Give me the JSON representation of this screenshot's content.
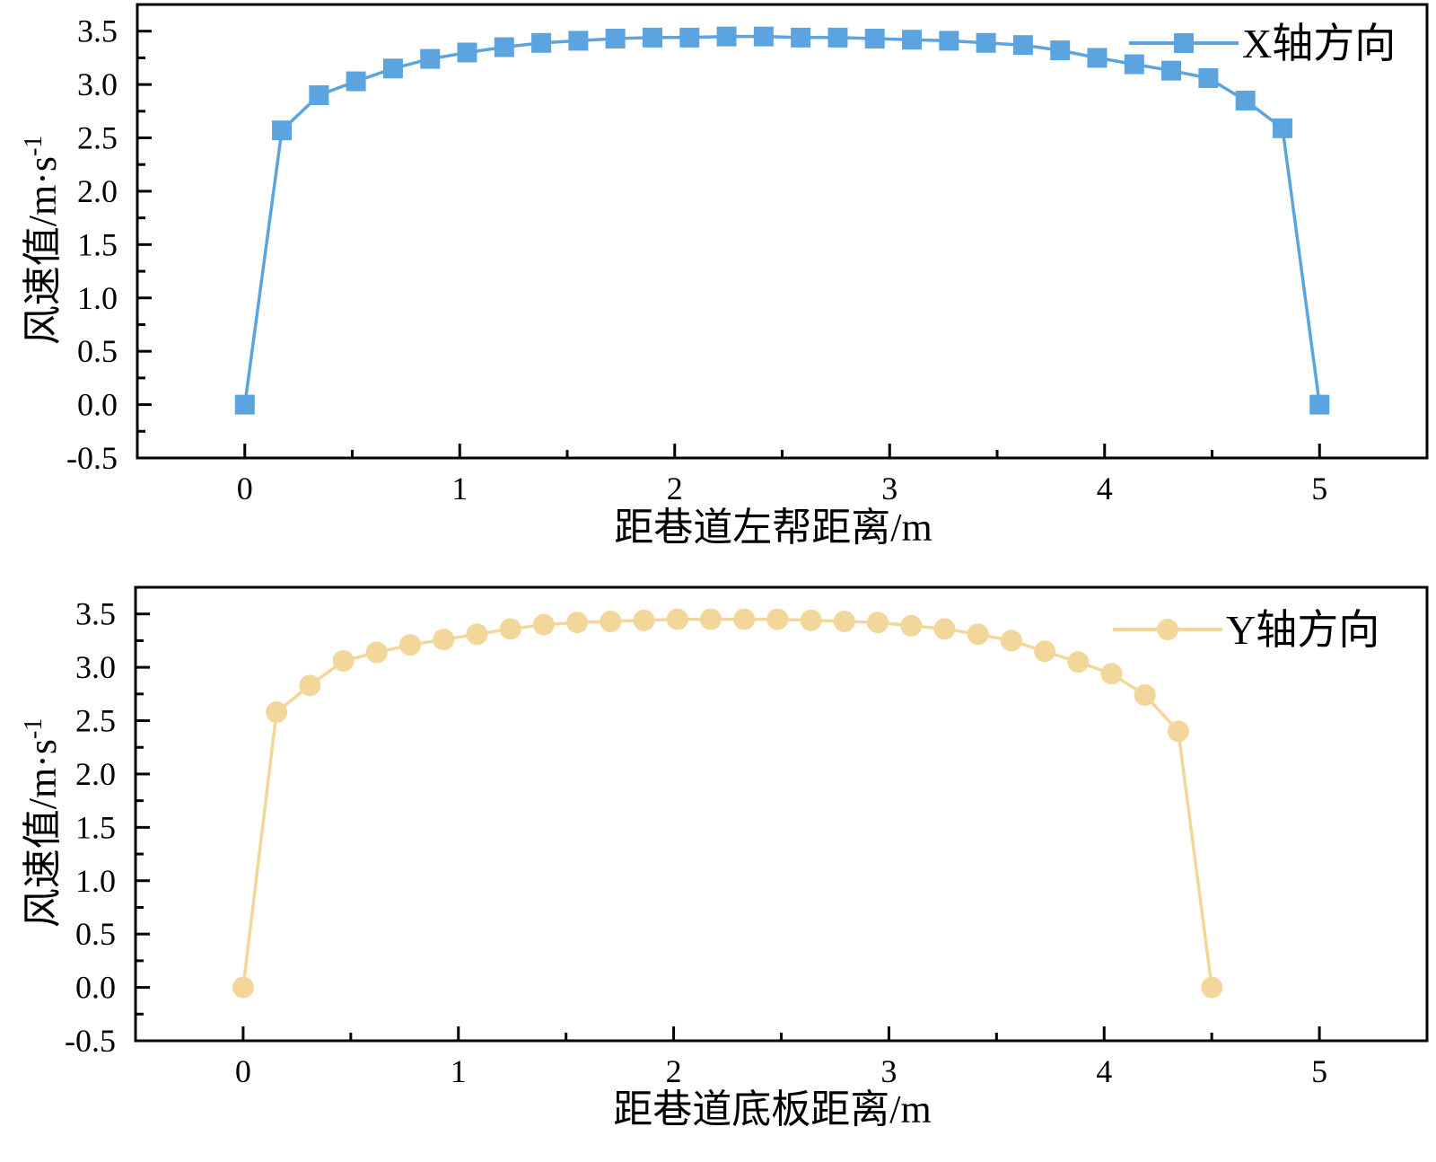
{
  "chart_data": [
    {
      "type": "line",
      "xlabel": "距巷道左帮距离/m",
      "ylabel": "风速值/m·s",
      "ylabel_sup": "-1",
      "xlim": [
        -0.5,
        5.5
      ],
      "ylim": [
        -0.5,
        3.75
      ],
      "xticks": [
        "0",
        "1",
        "2",
        "3",
        "4",
        "5"
      ],
      "yticks": [
        "-0.5",
        "0.0",
        "0.5",
        "1.0",
        "1.5",
        "2.0",
        "2.5",
        "3.0",
        "3.5"
      ],
      "legend": "top-right",
      "series": [
        {
          "name": "X轴方向",
          "color": "#5ba4e0",
          "marker": "square",
          "x": [
            0,
            0.1724,
            0.3448,
            0.5172,
            0.6897,
            0.8621,
            1.0345,
            1.2069,
            1.3793,
            1.5517,
            1.7241,
            1.8966,
            2.069,
            2.2414,
            2.4138,
            2.5862,
            2.7586,
            2.931,
            3.1034,
            3.2759,
            3.4483,
            3.6207,
            3.7931,
            3.9655,
            4.1379,
            4.3103,
            4.4828,
            4.6552,
            4.8276,
            5.0
          ],
          "y": [
            0.0,
            2.57,
            2.9,
            3.03,
            3.15,
            3.24,
            3.3,
            3.35,
            3.39,
            3.41,
            3.43,
            3.44,
            3.44,
            3.45,
            3.45,
            3.44,
            3.44,
            3.43,
            3.42,
            3.41,
            3.39,
            3.37,
            3.32,
            3.25,
            3.19,
            3.13,
            3.06,
            2.85,
            2.59,
            0.0
          ]
        }
      ]
    },
    {
      "type": "line",
      "xlabel": "距巷道底板距离/m",
      "ylabel": "风速值/m·s",
      "ylabel_sup": "-1",
      "xlim": [
        -0.5,
        5.5
      ],
      "ylim": [
        -0.5,
        3.75
      ],
      "xticks": [
        "0",
        "1",
        "2",
        "3",
        "4",
        "5"
      ],
      "yticks": [
        "-0.5",
        "0.0",
        "0.5",
        "1.0",
        "1.5",
        "2.0",
        "2.5",
        "3.0",
        "3.5"
      ],
      "legend": "top-right",
      "series": [
        {
          "name": "Y轴方向",
          "color": "#f3d79a",
          "marker": "circle",
          "x": [
            0,
            0.1552,
            0.3103,
            0.4655,
            0.6207,
            0.7759,
            0.931,
            1.0862,
            1.2414,
            1.3966,
            1.5517,
            1.7069,
            1.8621,
            2.0172,
            2.1724,
            2.3276,
            2.4828,
            2.6379,
            2.7931,
            2.9483,
            3.1034,
            3.2586,
            3.4138,
            3.569,
            3.7241,
            3.8793,
            4.0345,
            4.1897,
            4.3448,
            4.5
          ],
          "y": [
            0.0,
            2.58,
            2.83,
            3.06,
            3.14,
            3.21,
            3.26,
            3.31,
            3.36,
            3.4,
            3.42,
            3.43,
            3.44,
            3.45,
            3.45,
            3.45,
            3.45,
            3.44,
            3.43,
            3.42,
            3.39,
            3.36,
            3.31,
            3.25,
            3.15,
            3.05,
            2.94,
            2.74,
            2.4,
            0.0
          ]
        }
      ]
    }
  ]
}
